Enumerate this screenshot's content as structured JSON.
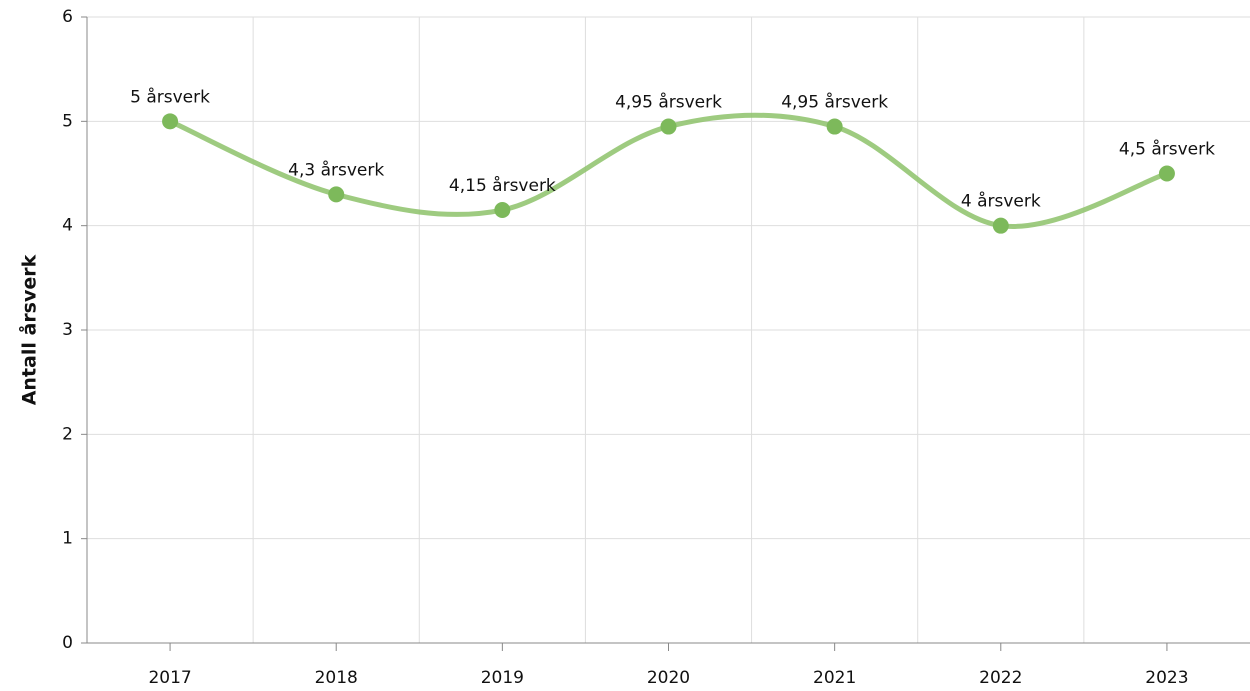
{
  "chart_data": {
    "type": "line",
    "y_label": "Antall årsverk",
    "categories": [
      "2017",
      "2018",
      "2019",
      "2020",
      "2021",
      "2022",
      "2023"
    ],
    "series": [
      {
        "name": "Antall årsverk",
        "color": "#8dc26a",
        "values": [
          5,
          4.3,
          4.15,
          4.95,
          4.95,
          4,
          4.5
        ],
        "value_labels": [
          "5 årsverk",
          "4,3 årsverk",
          "4,15 årsverk",
          "4,95 årsverk",
          "4,95 årsverk",
          "4 årsverk",
          "4,5 årsverk"
        ]
      }
    ],
    "ylim": [
      0,
      6
    ],
    "yticks": [
      0,
      1,
      2,
      3,
      4,
      5,
      6
    ],
    "grid": true,
    "smooth": true
  }
}
